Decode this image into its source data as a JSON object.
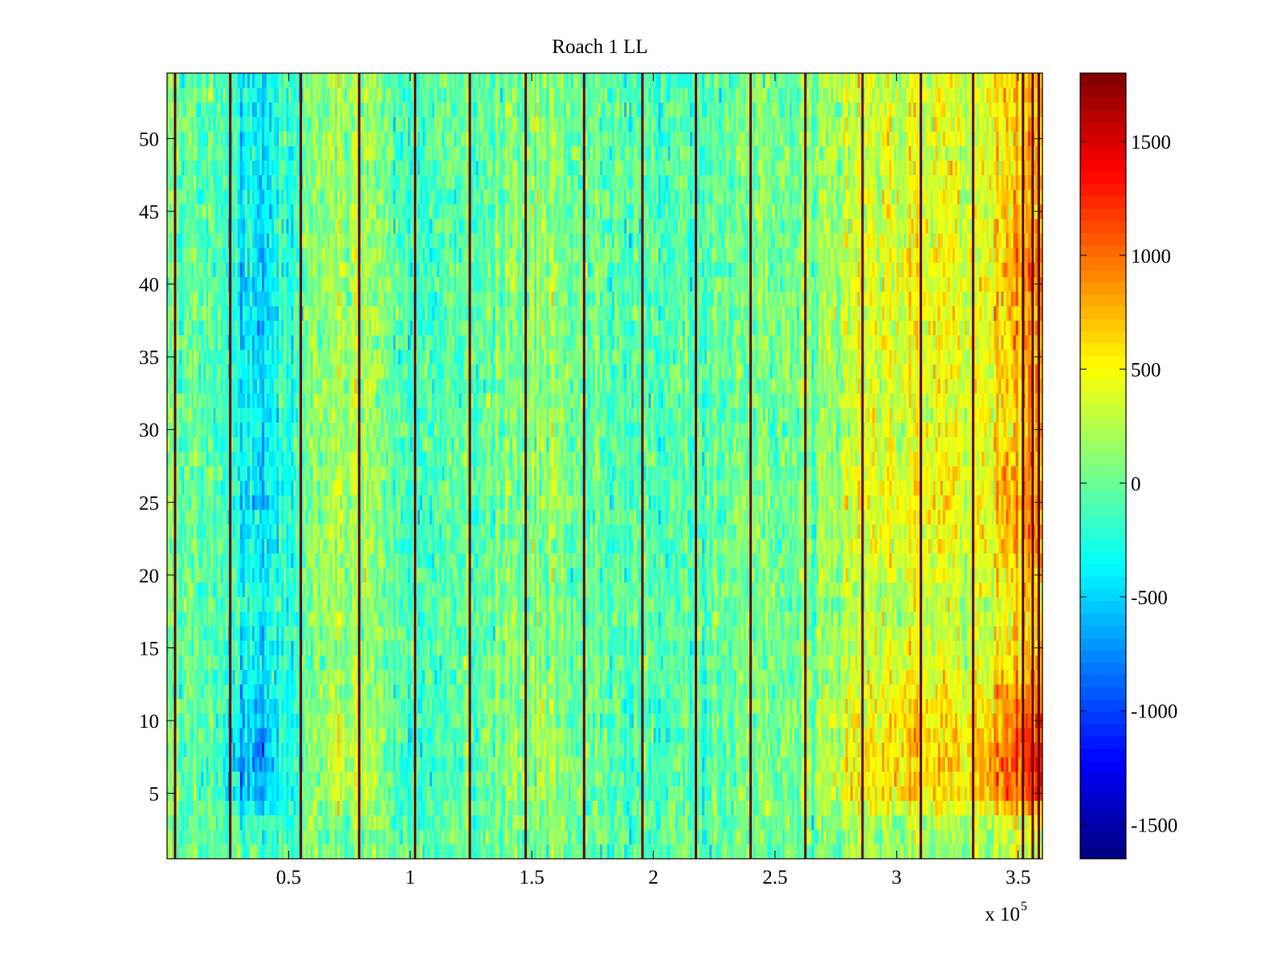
{
  "chart_data": {
    "type": "heatmap",
    "title": "Roach 1 LL",
    "x_axis": {
      "min": 0,
      "max": 360000,
      "ticks": [
        50000,
        100000,
        150000,
        200000,
        250000,
        300000,
        350000
      ],
      "tick_labels": [
        "0.5",
        "1",
        "1.5",
        "2",
        "2.5",
        "3",
        "3.5"
      ],
      "exponent_label": "x 10",
      "exponent": "5"
    },
    "y_axis": {
      "min": 0.5,
      "max": 54.5,
      "ticks": [
        5,
        10,
        15,
        20,
        25,
        30,
        35,
        40,
        45,
        50
      ],
      "tick_labels": [
        "5",
        "10",
        "15",
        "20",
        "25",
        "30",
        "35",
        "40",
        "45",
        "50"
      ]
    },
    "rows": 54,
    "colorbar": {
      "colormap": "jet",
      "min": -1650,
      "max": 1800,
      "ticks": [
        -1500,
        -1000,
        -500,
        0,
        500,
        1000,
        1500
      ],
      "tick_labels": [
        "-1500",
        "-1000",
        "-500",
        "0",
        "500",
        "1000",
        "1500"
      ]
    },
    "column_profile": {
      "x": [
        0,
        20000,
        30000,
        40000,
        50000,
        70000,
        80000,
        100000,
        130000,
        150000,
        180000,
        200000,
        230000,
        260000,
        280000,
        300000,
        330000,
        350000,
        360000
      ],
      "mean": [
        0,
        -100,
        -450,
        -500,
        -200,
        300,
        200,
        -200,
        0,
        150,
        0,
        -100,
        0,
        50,
        350,
        500,
        450,
        800,
        1000
      ]
    },
    "row_profile": {
      "row": [
        1,
        3,
        5,
        7,
        9,
        11,
        14,
        18,
        22,
        26,
        30,
        35,
        40,
        45,
        50,
        54
      ],
      "factor": [
        0.3,
        0.5,
        1.3,
        1.4,
        1.3,
        1.1,
        0.8,
        0.6,
        0.9,
        1.0,
        0.8,
        0.9,
        1.0,
        0.8,
        0.8,
        0.8
      ]
    },
    "dark_stripe_x": [
      3300,
      26000,
      55000,
      79000,
      102000,
      124500,
      147500,
      171500,
      195500,
      217500,
      240000,
      262500,
      286000,
      310000,
      331500,
      352000,
      356000,
      358500
    ]
  }
}
